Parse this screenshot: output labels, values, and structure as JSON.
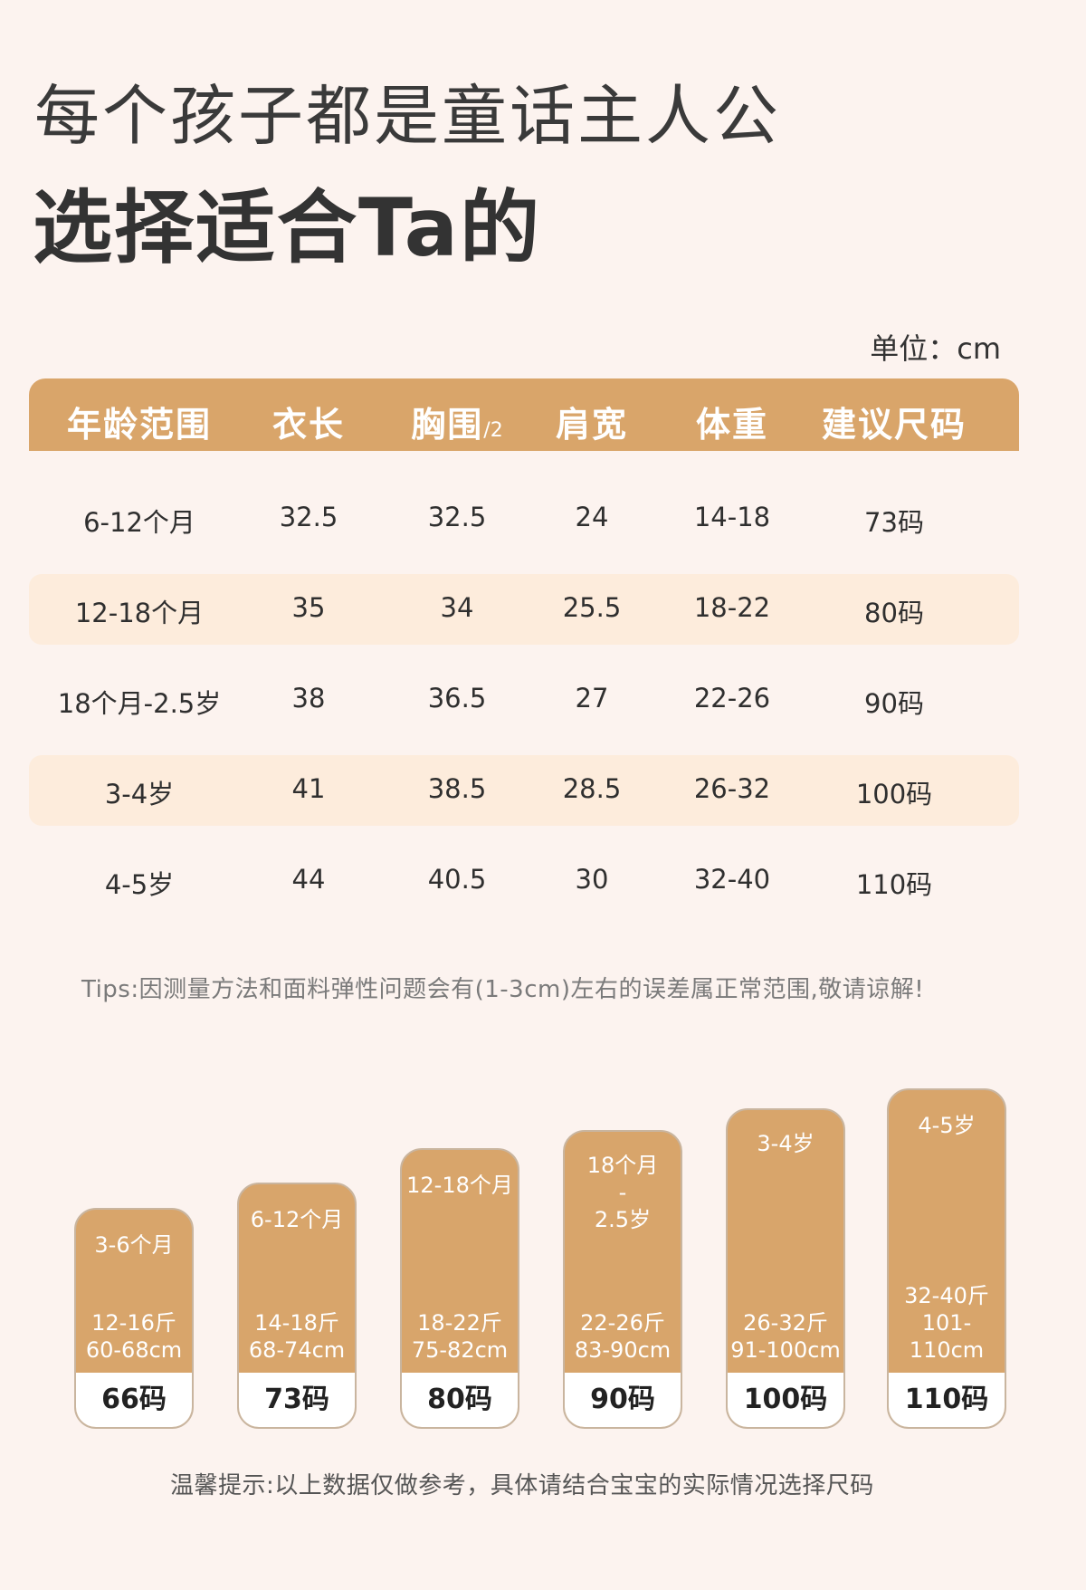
{
  "header": {
    "title_line1": "每个孩子都是童话主人公",
    "title_line2": "选择适合Ta的",
    "unit": "单位：cm"
  },
  "table": {
    "headers": [
      "年龄范围",
      "衣长",
      "胸围",
      "肩宽",
      "体重",
      "建议尺码"
    ],
    "header_suffix": "/2",
    "rows": [
      [
        "6-12个月",
        "32.5",
        "32.5",
        "24",
        "14-18",
        "73码"
      ],
      [
        "12-18个月",
        "35",
        "34",
        "25.5",
        "18-22",
        "80码"
      ],
      [
        "18个月-2.5岁",
        "38",
        "36.5",
        "27",
        "22-26",
        "90码"
      ],
      [
        "3-4岁",
        "41",
        "38.5",
        "28.5",
        "26-32",
        "100码"
      ],
      [
        "4-5岁",
        "44",
        "40.5",
        "30",
        "32-40",
        "110码"
      ]
    ]
  },
  "tips": "Tips:因测量方法和面料弹性问题会有(1-3cm)左右的误差属正常范围,敬请谅解!",
  "size_bars": [
    {
      "age": "3-6个月",
      "weight": "12-16斤",
      "height": "60-68cm",
      "size": "66码"
    },
    {
      "age": "6-12个月",
      "weight": "14-18斤",
      "height": "68-74cm",
      "size": "73码"
    },
    {
      "age": "12-18个月",
      "weight": "18-22斤",
      "height": "75-82cm",
      "size": "80码"
    },
    {
      "age_line1": "18个月",
      "age_line2": "-",
      "age_line3": "2.5岁",
      "weight": "22-26斤",
      "height": "83-90cm",
      "size": "90码"
    },
    {
      "age": "3-4岁",
      "weight": "26-32斤",
      "height": "91-100cm",
      "size": "100码"
    },
    {
      "age": "4-5岁",
      "weight": "32-40斤",
      "height": "101-110cm",
      "size": "110码"
    }
  ],
  "footer_note": "温馨提示:以上数据仅做参考，具体请结合宝宝的实际情况选择尺码",
  "colors": {
    "accent": "#d9a56a",
    "row_shade": "#fdecdc",
    "background": "#fcf3ef"
  }
}
